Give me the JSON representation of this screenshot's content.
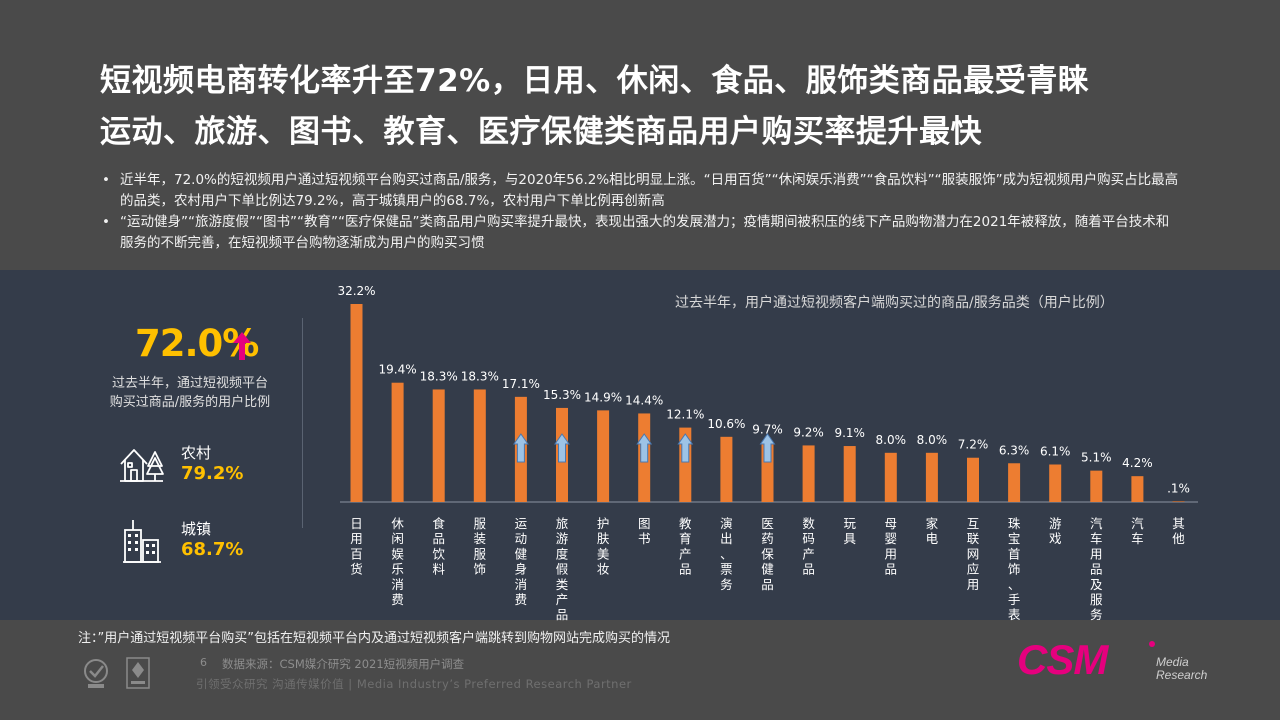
{
  "title": {
    "line1": "短视频电商转化率升至72%，日用、休闲、食品、服饰类商品最受青睐",
    "line2": "运动、旅游、图书、教育、医疗保健类商品用户购买率提升最快"
  },
  "bullets": [
    "近半年，72.0%的短视频用户通过短视频平台购买过商品/服务，与2020年56.2%相比明显上涨。“日用百货”“休闲娱乐消费”“食品饮料”“服装服饰”成为短视频用户购买占比最高的品类，农村用户下单比例达79.2%，高于城镇用户的68.7%，农村用户下单比例再创新高",
    "“运动健身”“旅游度假”“图书”“教育”“医疗保健品”类商品用户购买率提升最快，表现出强大的发展潜力；疫情期间被积压的线下产品购物潜力在2021年被释放，随着平台技术和服务的不断完善，在短视频平台购物逐渐成为用户的购买习惯"
  ],
  "bullet_symbol": "•",
  "summary": {
    "value": "72.0%",
    "arrow": "⬆",
    "desc_line1": "过去半年，通过短视频平台",
    "desc_line2": "购买过商品/服务的用户比例",
    "rural_label": "农村",
    "rural_value": "79.2%",
    "urban_label": "城镇",
    "urban_value": "68.7%"
  },
  "chart_data": {
    "type": "bar",
    "title": "过去半年，用户通过短视频客户端购买过的商品/服务品类（用户比例）",
    "categories": [
      "日用百货",
      "休闲娱乐消费",
      "食品饮料",
      "服装服饰",
      "运动健身消费",
      "旅游度假类产品",
      "护肤美妆",
      "图书",
      "教育产品",
      "演出、票务",
      "医药保健品",
      "数码产品",
      "玩具",
      "母婴用品",
      "家电",
      "互联网应用",
      "珠宝首饰、手表",
      "游戏",
      "汽车用品及服务",
      "汽车",
      "其他"
    ],
    "value_labels": [
      "32.2%",
      "19.4%",
      "18.3%",
      "18.3%",
      "17.1%",
      "15.3%",
      "14.9%",
      "14.4%",
      "12.1%",
      "10.6%",
      "9.7%",
      "9.2%",
      "9.1%",
      "8.0%",
      "8.0%",
      "7.2%",
      "6.3%",
      "6.1%",
      "5.1%",
      "4.2%",
      ".1%"
    ],
    "values": [
      32.2,
      19.4,
      18.3,
      18.3,
      17.1,
      15.3,
      14.9,
      14.4,
      12.1,
      10.6,
      9.7,
      9.2,
      9.1,
      8.0,
      8.0,
      7.2,
      6.3,
      6.1,
      5.1,
      4.2,
      0.1
    ],
    "rising_categories": [
      "运动健身消费",
      "旅游度假类产品",
      "图书",
      "教育产品",
      "医药保健品"
    ],
    "ylim": [
      0,
      32.2
    ],
    "bar_color": "#ed7d31",
    "arrow_color": "#9dc3e6"
  },
  "footer": {
    "note": "注：”用户通过短视频平台购买”包括在短视频平台内及通过短视频客户端跳转到购物网站完成购买的情况",
    "page_number": "6",
    "source": "数据来源：CSM媒介研究 2021短视频用户调查",
    "slogan": "引领受众研究  沟通传媒价值 | Media Industry’s Preferred Research Partner",
    "logo_text": "CSM",
    "logo_sub1": "Media",
    "logo_sub2": "Research"
  },
  "colors": {
    "background": "#4a4a4a",
    "panel": "#343c4a",
    "accent_yellow": "#ffc000",
    "accent_pink": "#e6007e",
    "bar": "#ed7d31"
  }
}
